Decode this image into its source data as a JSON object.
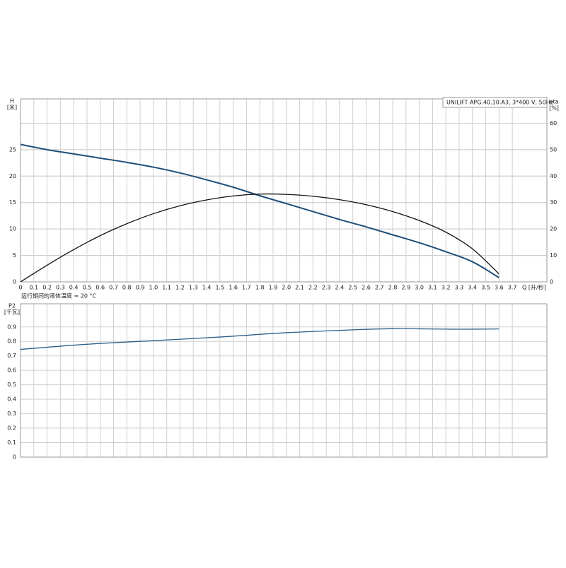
{
  "chart_data": [
    {
      "type": "line",
      "title": "UNILIFT APG.40.10.A3, 3*400 V, 50Hz",
      "xlabel": "Q [升/秒]",
      "ylabel": "H",
      "ylabel_unit": "[米]",
      "y2label": "eta",
      "y2label_unit": "[%]",
      "x": [
        0,
        0.2,
        0.4,
        0.6,
        0.8,
        1.0,
        1.2,
        1.4,
        1.6,
        1.8,
        2.0,
        2.2,
        2.4,
        2.6,
        2.8,
        3.0,
        3.2,
        3.4,
        3.6
      ],
      "series": [
        {
          "name": "H",
          "color": "#1f4e79",
          "values": [
            26,
            25.0,
            24.2,
            23.4,
            22.6,
            21.7,
            20.6,
            19.3,
            17.9,
            16.3,
            14.8,
            13.3,
            11.8,
            10.4,
            8.9,
            7.4,
            5.7,
            3.8,
            0.8
          ]
        },
        {
          "name": "eta",
          "color": "#111111",
          "axis": "y2",
          "values": [
            0,
            6.3,
            12.2,
            17.5,
            22,
            25.8,
            28.8,
            31,
            32.5,
            33.2,
            33.1,
            32.4,
            31.1,
            29.2,
            26.6,
            23.2,
            18.8,
            12.5,
            3
          ]
        }
      ],
      "xlim": [
        0,
        3.96
      ],
      "xticks": [
        0,
        0.1,
        0.2,
        0.3,
        0.4,
        0.5,
        0.6,
        0.7,
        0.8,
        0.9,
        {
          "value": 1,
          "label": "1.0"
        },
        1.1,
        1.2,
        1.3,
        1.4,
        1.5,
        1.6,
        1.7,
        1.8,
        1.9,
        {
          "value": 2,
          "label": "2.0"
        },
        2.1,
        2.2,
        2.3,
        2.4,
        2.5,
        2.6,
        2.7,
        2.8,
        2.9,
        {
          "value": 3,
          "label": "3.0"
        },
        3.1,
        3.2,
        3.3,
        3.4,
        3.5,
        3.6,
        3.7
      ],
      "ylim": [
        0,
        34.6
      ],
      "yticks": [
        0,
        5,
        10,
        15,
        20,
        25
      ],
      "y2lim": [
        0,
        69.2
      ],
      "y2ticks": [
        0,
        10,
        20,
        30,
        40,
        50,
        60
      ],
      "grid": true
    },
    {
      "type": "line",
      "title": "运行期间的液体温度 = 20 °C",
      "ylabel": "P2",
      "ylabel_unit": "[千瓦]",
      "x": [
        0,
        0.5,
        1.0,
        1.5,
        2.0,
        2.5,
        2.8,
        3.0,
        3.3,
        3.6
      ],
      "series": [
        {
          "name": "P2",
          "color": "#2b5f8a",
          "values": [
            0.745,
            0.78,
            0.805,
            0.83,
            0.86,
            0.88,
            0.888,
            0.887,
            0.884,
            0.886
          ]
        }
      ],
      "xlim": [
        0,
        3.96
      ],
      "ylim": [
        0,
        1.06
      ],
      "yticks": [
        0,
        0.1,
        0.2,
        0.3,
        0.4,
        0.5,
        0.6,
        0.7,
        0.8,
        0.9
      ],
      "grid": true
    }
  ]
}
